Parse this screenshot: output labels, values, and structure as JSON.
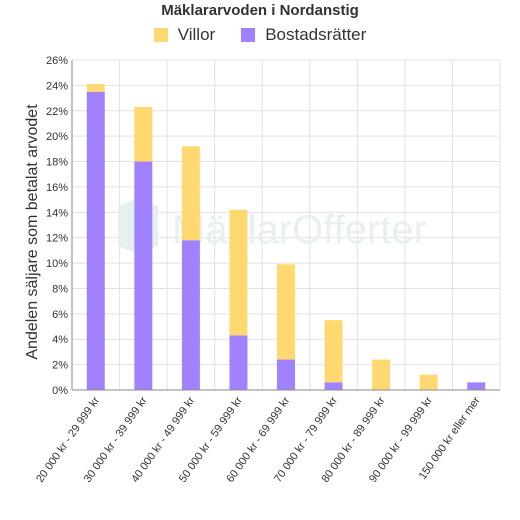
{
  "colors": {
    "villor": "#ffd970",
    "bostadsratter": "#a082ff",
    "grid": "#e2e2e2",
    "axis": "#888888"
  },
  "watermark": "MäklarOfferter",
  "chart_data": {
    "type": "bar",
    "stacked": true,
    "title": "Mäklararvoden i Nordanstig",
    "ylabel": "Andelen säljare som betalat arvodet",
    "xlabel": "",
    "ylim": [
      0,
      26
    ],
    "yticks": [
      "0%",
      "2%",
      "4%",
      "6%",
      "8%",
      "10%",
      "12%",
      "14%",
      "16%",
      "18%",
      "20%",
      "22%",
      "24%",
      "26%"
    ],
    "categories": [
      "20 000 kr - 29 999 kr",
      "30 000 kr - 39 999 kr",
      "40 000 kr - 49 999 kr",
      "50 000 kr - 59 999 kr",
      "60 000 kr - 69 999 kr",
      "70 000 kr - 79 999 kr",
      "80 000 kr - 89 999 kr",
      "90 000 kr - 99 999 kr",
      "150 000 kr eller mer"
    ],
    "series": [
      {
        "name": "Bostadsrätter",
        "values": [
          23.5,
          18.0,
          11.8,
          4.3,
          2.4,
          0.6,
          0,
          0,
          0.6
        ]
      },
      {
        "name": "Villor",
        "values": [
          0.6,
          4.3,
          7.4,
          9.9,
          7.5,
          4.9,
          2.4,
          1.2,
          0
        ]
      }
    ],
    "legend": {
      "position": "top",
      "items": [
        "Villor",
        "Bostadsrätter"
      ]
    },
    "grid": true
  }
}
